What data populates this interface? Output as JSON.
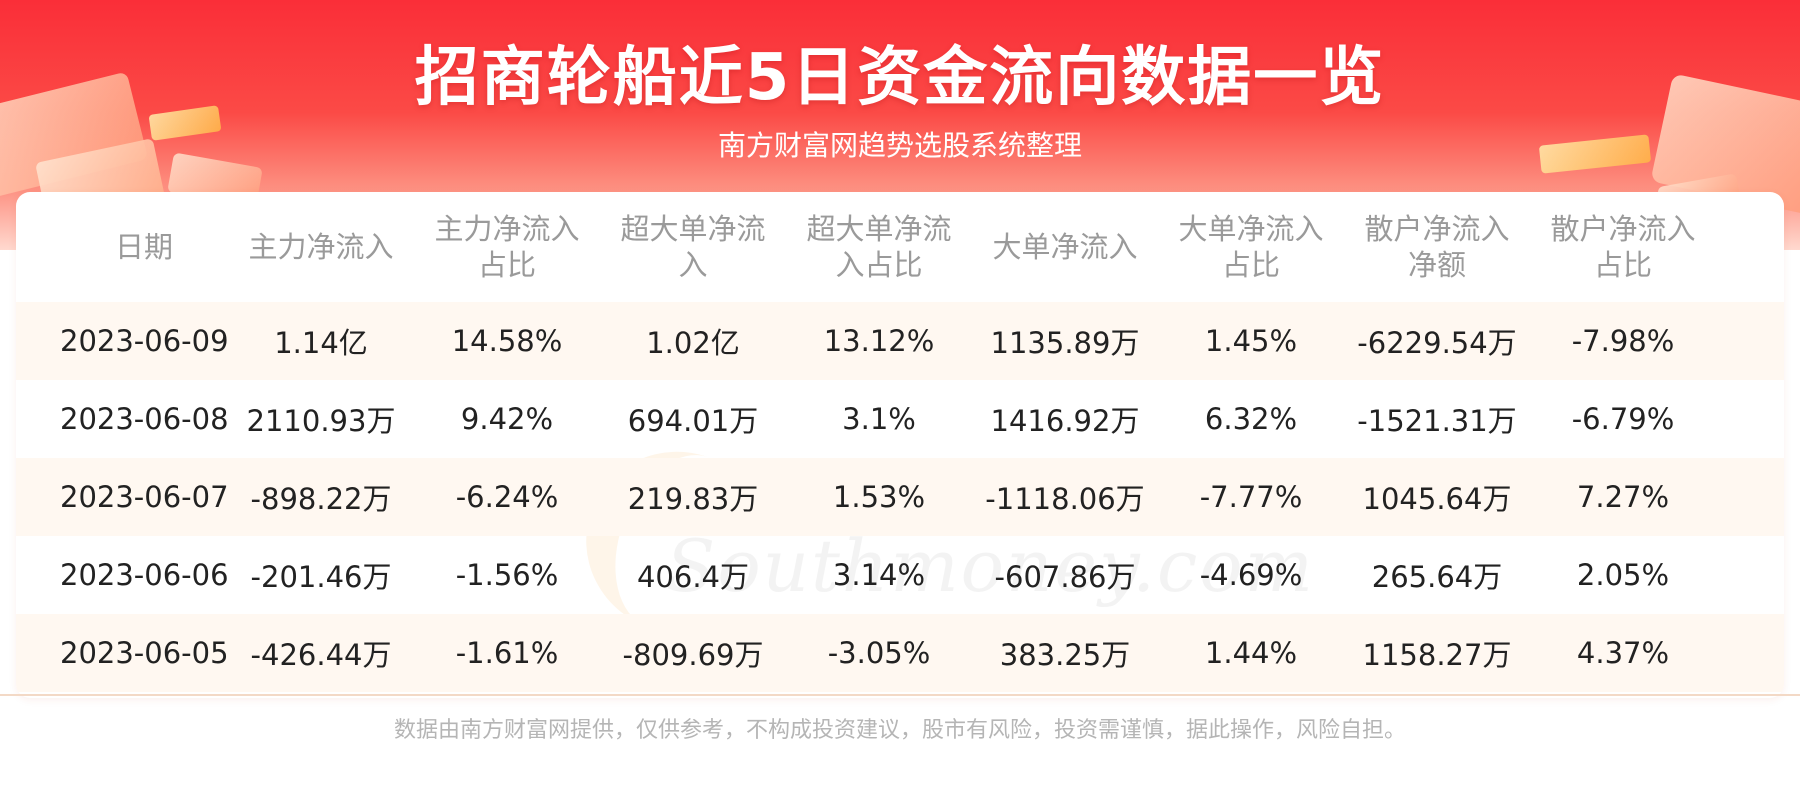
{
  "header": {
    "title": "招商轮船近5日资金流向数据一览",
    "subtitle": "南方财富网趋势选股系统整理"
  },
  "watermark": {
    "cn": "南方财富网",
    "en": "Southmoney.com"
  },
  "table": {
    "columns": [
      [
        "日期"
      ],
      [
        "主力净流入"
      ],
      [
        "主力净流入",
        "占比"
      ],
      [
        "超大单净流",
        "入"
      ],
      [
        "超大单净流",
        "入占比"
      ],
      [
        "大单净流入"
      ],
      [
        "大单净流入",
        "占比"
      ],
      [
        "散户净流入",
        "净额"
      ],
      [
        "散户净流入",
        "占比"
      ]
    ],
    "rows": [
      [
        "2023-06-09",
        "1.14亿",
        "14.58%",
        "1.02亿",
        "13.12%",
        "1135.89万",
        "1.45%",
        "-6229.54万",
        "-7.98%"
      ],
      [
        "2023-06-08",
        "2110.93万",
        "9.42%",
        "694.01万",
        "3.1%",
        "1416.92万",
        "6.32%",
        "-1521.31万",
        "-6.79%"
      ],
      [
        "2023-06-07",
        "-898.22万",
        "-6.24%",
        "219.83万",
        "1.53%",
        "-1118.06万",
        "-7.77%",
        "1045.64万",
        "7.27%"
      ],
      [
        "2023-06-06",
        "-201.46万",
        "-1.56%",
        "406.4万",
        "3.14%",
        "-607.86万",
        "-4.69%",
        "265.64万",
        "2.05%"
      ],
      [
        "2023-06-05",
        "-426.44万",
        "-1.61%",
        "-809.69万",
        "-3.05%",
        "383.25万",
        "1.44%",
        "1158.27万",
        "4.37%"
      ]
    ]
  },
  "footer": {
    "disclaimer": "数据由南方财富网提供，仅供参考，不构成投资建议，股市有风险，投资需谨慎，据此操作，风险自担。"
  },
  "colors": {
    "header_red": "#fa2e38",
    "row_alt": "#fff8f1",
    "header_text": "#9a9a9a",
    "cell_text": "#222222"
  }
}
